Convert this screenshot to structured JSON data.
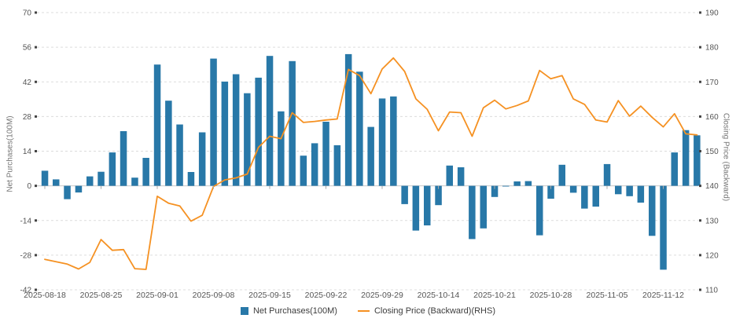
{
  "legend": {
    "bar_label": "Net Purchases(100M)",
    "line_label": "Closing Price (Backward)(RHS)"
  },
  "left_axis": {
    "title": "Net Purchases(100M)",
    "ticks": [
      70,
      56,
      42,
      28,
      14,
      0,
      -14,
      -28,
      -42
    ]
  },
  "right_axis": {
    "title": "Closing Price (Backward)",
    "ticks": [
      190,
      180,
      170,
      160,
      150,
      140,
      130,
      120,
      110
    ]
  },
  "x_axis": {
    "tick_labels": [
      "2025-08-18",
      "2025-08-25",
      "2025-09-01",
      "2025-09-08",
      "2025-09-15",
      "2025-09-22",
      "2025-09-29",
      "2025-10-14",
      "2025-10-21",
      "2025-10-28",
      "2025-11-05",
      "2025-11-12"
    ],
    "tick_every": 5
  },
  "colors": {
    "bar": "#2878a8",
    "line": "#f59122",
    "grid": "#dcdcdc",
    "zero_line": "#c8c8c8",
    "tick_mark": "#444444",
    "tick_text": "#555555"
  },
  "chart_data": {
    "type": "bar+line",
    "title": "",
    "xlabel": "",
    "ylabel_left": "Net Purchases(100M)",
    "ylabel_right": "Closing Price (Backward)",
    "left_ylim": [
      -42,
      70
    ],
    "right_ylim": [
      110,
      190
    ],
    "grid": "dashed horizontal",
    "legend_position": "bottom center",
    "x": [
      "2025-08-18",
      "2025-08-19",
      "2025-08-20",
      "2025-08-21",
      "2025-08-22",
      "2025-08-25",
      "2025-08-26",
      "2025-08-27",
      "2025-08-28",
      "2025-08-29",
      "2025-09-01",
      "2025-09-02",
      "2025-09-03",
      "2025-09-04",
      "2025-09-05",
      "2025-09-08",
      "2025-09-09",
      "2025-09-10",
      "2025-09-11",
      "2025-09-12",
      "2025-09-15",
      "2025-09-16",
      "2025-09-17",
      "2025-09-18",
      "2025-09-19",
      "2025-09-22",
      "2025-09-23",
      "2025-09-24",
      "2025-09-25",
      "2025-09-26",
      "2025-09-29",
      "2025-09-30",
      "2025-10-09",
      "2025-10-10",
      "2025-10-13",
      "2025-10-14",
      "2025-10-15",
      "2025-10-16",
      "2025-10-17",
      "2025-10-20",
      "2025-10-21",
      "2025-10-22",
      "2025-10-23",
      "2025-10-24",
      "2025-10-27",
      "2025-10-28",
      "2025-10-29",
      "2025-10-30",
      "2025-10-31",
      "2025-11-03",
      "2025-11-05",
      "2025-11-06",
      "2025-11-07",
      "2025-11-10",
      "2025-11-11",
      "2025-11-12",
      "2025-11-13",
      "2025-11-14",
      "2025-11-17"
    ],
    "series": [
      {
        "name": "Net Purchases(100M)",
        "type": "bar",
        "axis": "left",
        "values": [
          6.1,
          2.6,
          -5.4,
          -2.7,
          3.8,
          5.7,
          13.5,
          22.1,
          3.3,
          11.3,
          49.0,
          34.4,
          24.8,
          5.6,
          21.6,
          51.4,
          42.1,
          45.1,
          37.4,
          43.7,
          52.5,
          30.1,
          50.4,
          12.2,
          17.2,
          25.9,
          16.4,
          53.2,
          46.1,
          23.8,
          35.3,
          36.1,
          -7.4,
          -18.1,
          -16.0,
          -7.8,
          8.2,
          7.5,
          -21.5,
          -17.2,
          -4.5,
          -0.3,
          1.8,
          1.9,
          -20.0,
          -5.2,
          8.5,
          -2.8,
          -9.2,
          -8.4,
          8.8,
          -3.4,
          -4.2,
          -6.8,
          -20.2,
          -33.9,
          13.5,
          22.5,
          20.4
        ]
      },
      {
        "name": "Closing Price (Backward)(RHS)",
        "type": "line",
        "axis": "right",
        "values": [
          118.8,
          118.1,
          117.4,
          116.0,
          117.9,
          124.5,
          121.4,
          121.6,
          116.1,
          115.9,
          137.0,
          135.0,
          134.2,
          129.8,
          131.5,
          139.8,
          141.7,
          142.3,
          143.4,
          151.1,
          154.3,
          153.6,
          161.1,
          158.3,
          158.6,
          159.0,
          159.3,
          173.6,
          171.8,
          166.6,
          173.7,
          176.9,
          173.0,
          165.1,
          162.1,
          155.9,
          161.3,
          161.1,
          154.3,
          162.5,
          164.7,
          162.2,
          163.2,
          164.5,
          173.3,
          170.9,
          171.8,
          165.1,
          163.5,
          159.0,
          158.4,
          164.6,
          160.1,
          163.0,
          159.8,
          157.0,
          160.8,
          155.0,
          154.7
        ]
      }
    ]
  }
}
